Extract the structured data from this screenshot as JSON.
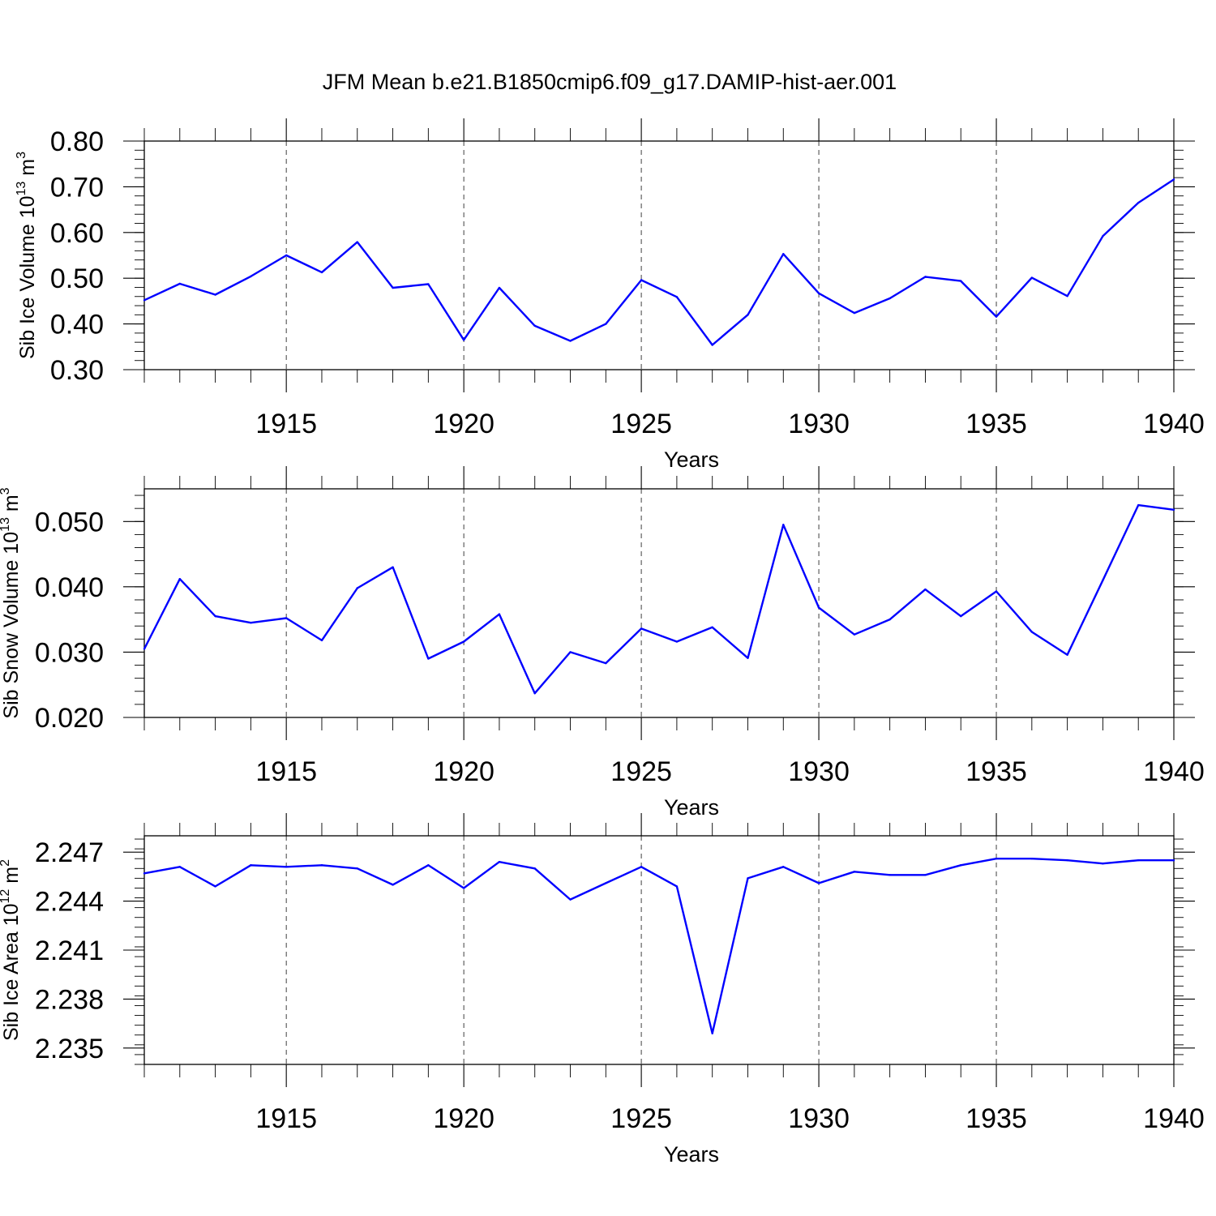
{
  "title": "JFM Mean b.e21.B1850cmip6.f09_g17.DAMIP-hist-aer.001",
  "line_color": "#0000ff",
  "chart_data": [
    {
      "type": "line",
      "ylabel_main": "Sib Ice Volume 10",
      "ylabel_exp": "13",
      "ylabel_unit": " m",
      "ylabel_unit_exp": "3",
      "xlabel": "Years",
      "xlim": [
        1911,
        1940
      ],
      "ylim": [
        0.3,
        0.8
      ],
      "xticks": [
        1915,
        1920,
        1925,
        1930,
        1935,
        1940
      ],
      "yticks": [
        0.3,
        0.4,
        0.5,
        0.6,
        0.7,
        0.8
      ],
      "ytick_labels": [
        "0.30",
        "0.40",
        "0.50",
        "0.60",
        "0.70",
        "0.80"
      ],
      "grid": "vertical dashed at labeled years",
      "x": [
        1911,
        1912,
        1913,
        1914,
        1915,
        1916,
        1917,
        1918,
        1919,
        1920,
        1921,
        1922,
        1923,
        1924,
        1925,
        1926,
        1927,
        1928,
        1929,
        1930,
        1931,
        1932,
        1933,
        1934,
        1935,
        1936,
        1937,
        1938,
        1939,
        1940
      ],
      "values": [
        0.452,
        0.488,
        0.464,
        0.504,
        0.55,
        0.513,
        0.579,
        0.479,
        0.487,
        0.365,
        0.479,
        0.396,
        0.363,
        0.4,
        0.496,
        0.459,
        0.354,
        0.42,
        0.553,
        0.467,
        0.424,
        0.456,
        0.503,
        0.494,
        0.416,
        0.501,
        0.461,
        0.592,
        0.665,
        0.716
      ]
    },
    {
      "type": "line",
      "ylabel_main": "Sib Snow Volume 10",
      "ylabel_exp": "13",
      "ylabel_unit": " m",
      "ylabel_unit_exp": "3",
      "xlabel": "Years",
      "xlim": [
        1911,
        1940
      ],
      "ylim": [
        0.02,
        0.055
      ],
      "xticks": [
        1915,
        1920,
        1925,
        1930,
        1935,
        1940
      ],
      "yticks": [
        0.02,
        0.03,
        0.04,
        0.05
      ],
      "ytick_labels": [
        "0.020",
        "0.030",
        "0.040",
        "0.050"
      ],
      "grid": "vertical dashed at labeled years",
      "x": [
        1911,
        1912,
        1913,
        1914,
        1915,
        1916,
        1917,
        1918,
        1919,
        1920,
        1921,
        1922,
        1923,
        1924,
        1925,
        1926,
        1927,
        1928,
        1929,
        1930,
        1931,
        1932,
        1933,
        1934,
        1935,
        1936,
        1937,
        1938,
        1939,
        1940
      ],
      "values": [
        0.0305,
        0.0412,
        0.0355,
        0.0345,
        0.0352,
        0.0318,
        0.0398,
        0.043,
        0.029,
        0.0316,
        0.0358,
        0.0237,
        0.03,
        0.0283,
        0.0336,
        0.0316,
        0.0338,
        0.0291,
        0.0495,
        0.0368,
        0.0327,
        0.035,
        0.0396,
        0.0355,
        0.0393,
        0.0331,
        0.0296,
        0.041,
        0.0525,
        0.0518
      ]
    },
    {
      "type": "line",
      "ylabel_main": "Sib Ice Area 10",
      "ylabel_exp": "12",
      "ylabel_unit": " m",
      "ylabel_unit_exp": "2",
      "xlabel": "Years",
      "xlim": [
        1911,
        1940
      ],
      "ylim": [
        2.234,
        2.248
      ],
      "xticks": [
        1915,
        1920,
        1925,
        1930,
        1935,
        1940
      ],
      "yticks": [
        2.235,
        2.238,
        2.241,
        2.244,
        2.247
      ],
      "ytick_labels": [
        "2.235",
        "2.238",
        "2.241",
        "2.244",
        "2.247"
      ],
      "grid": "vertical dashed at labeled years",
      "x": [
        1911,
        1912,
        1913,
        1914,
        1915,
        1916,
        1917,
        1918,
        1919,
        1920,
        1921,
        1922,
        1923,
        1924,
        1925,
        1926,
        1927,
        1928,
        1929,
        1930,
        1931,
        1932,
        1933,
        1934,
        1935,
        1936,
        1937,
        1938,
        1939,
        1940
      ],
      "values": [
        2.2457,
        2.2461,
        2.2449,
        2.2462,
        2.2461,
        2.2462,
        2.246,
        2.245,
        2.2462,
        2.2448,
        2.2464,
        2.246,
        2.2441,
        2.2451,
        2.2461,
        2.2449,
        2.2359,
        2.2454,
        2.2461,
        2.2451,
        2.2458,
        2.2456,
        2.2456,
        2.2462,
        2.2466,
        2.2466,
        2.2465,
        2.2463,
        2.2465,
        2.2465
      ]
    }
  ]
}
